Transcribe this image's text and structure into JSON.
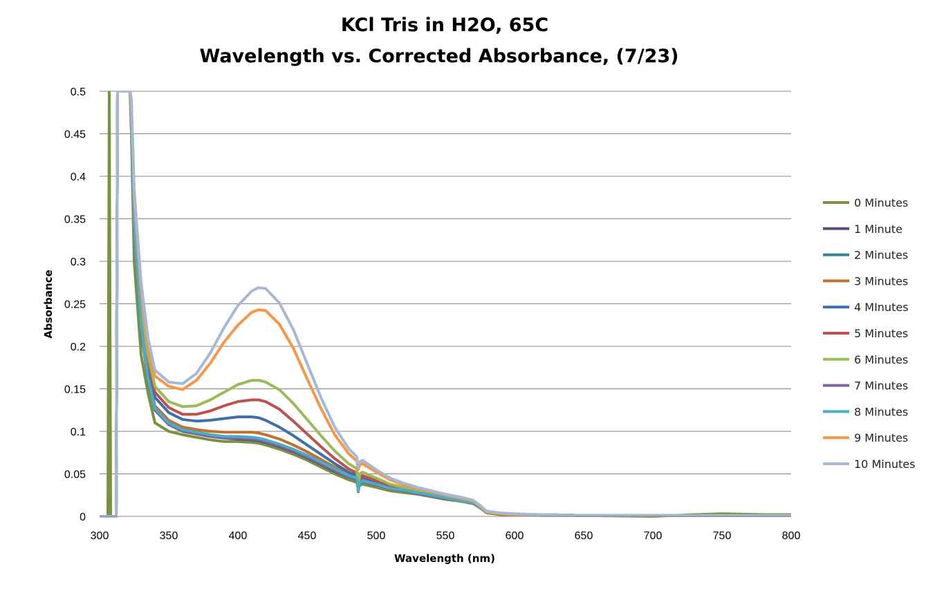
{
  "chart_data": {
    "type": "line",
    "title": [
      "KCl Tris in H2O, 65C",
      "Wavelength vs. Corrected Absorbance, (7/23)"
    ],
    "xlabel": "Wavelength (nm)",
    "ylabel": "Absorbance",
    "xlim": [
      300,
      800
    ],
    "ylim": [
      0,
      0.5
    ],
    "x_ticks": [
      "300",
      "350",
      "400",
      "450",
      "500",
      "550",
      "600",
      "650",
      "700",
      "750",
      "800"
    ],
    "y_ticks": [
      "0",
      "0.05",
      "0.1",
      "0.15",
      "0.2",
      "0.25",
      "0.3",
      "0.35",
      "0.4",
      "0.45",
      "0.5"
    ],
    "grid": "horizontal",
    "legend_position": "right",
    "x": [
      300,
      306,
      307,
      308,
      312,
      313,
      314,
      322,
      323,
      325,
      330,
      335,
      340,
      350,
      360,
      370,
      380,
      390,
      400,
      410,
      415,
      420,
      430,
      440,
      450,
      460,
      470,
      480,
      486,
      487,
      488,
      490,
      500,
      510,
      520,
      530,
      540,
      550,
      560,
      570,
      575,
      580,
      590,
      600,
      620,
      650,
      700,
      730,
      750,
      780,
      800
    ],
    "series": [
      {
        "name": "0 Minutes",
        "color": "#77933c",
        "values": [
          0,
          0,
          0.5,
          0,
          0,
          0.5,
          0.5,
          0.5,
          0.45,
          0.3,
          0.19,
          0.145,
          0.11,
          0.1,
          0.096,
          0.093,
          0.09,
          0.088,
          0.088,
          0.087,
          0.086,
          0.084,
          0.079,
          0.073,
          0.066,
          0.058,
          0.05,
          0.043,
          0.04,
          0.032,
          0.036,
          0.038,
          0.034,
          0.03,
          0.028,
          0.026,
          0.023,
          0.02,
          0.018,
          0.015,
          0.01,
          0.004,
          0.002,
          0.002,
          0.001,
          0.001,
          0,
          0.002,
          0.003,
          0.002,
          0.002
        ]
      },
      {
        "name": "1 Minute",
        "color": "#604a7b",
        "values": [
          0,
          0,
          0,
          0,
          0,
          0.5,
          0.5,
          0.5,
          0.47,
          0.34,
          0.22,
          0.16,
          0.125,
          0.108,
          0.1,
          0.097,
          0.094,
          0.092,
          0.091,
          0.09,
          0.089,
          0.087,
          0.082,
          0.076,
          0.069,
          0.061,
          0.053,
          0.046,
          0.043,
          0.032,
          0.038,
          0.041,
          0.037,
          0.032,
          0.03,
          0.027,
          0.024,
          0.021,
          0.019,
          0.016,
          0.011,
          0.005,
          0.003,
          0.002,
          0.002,
          0.001,
          0.001,
          0.001,
          0.001,
          0.001,
          0.001
        ]
      },
      {
        "name": "2 Minutes",
        "color": "#31849b",
        "values": [
          0,
          0,
          0,
          0,
          0,
          0.5,
          0.5,
          0.5,
          0.47,
          0.345,
          0.225,
          0.163,
          0.127,
          0.11,
          0.102,
          0.099,
          0.096,
          0.094,
          0.093,
          0.092,
          0.091,
          0.089,
          0.084,
          0.078,
          0.071,
          0.063,
          0.055,
          0.047,
          0.044,
          0.03,
          0.039,
          0.042,
          0.038,
          0.033,
          0.031,
          0.028,
          0.025,
          0.022,
          0.019,
          0.016,
          0.011,
          0.005,
          0.003,
          0.002,
          0.002,
          0.001,
          0.001,
          0.001,
          0.001,
          0.001,
          0.001
        ]
      },
      {
        "name": "3 Minutes",
        "color": "#c0712a",
        "values": [
          0,
          0,
          0,
          0,
          0,
          0.5,
          0.5,
          0.5,
          0.47,
          0.35,
          0.23,
          0.168,
          0.13,
          0.113,
          0.105,
          0.102,
          0.1,
          0.099,
          0.099,
          0.099,
          0.098,
          0.096,
          0.091,
          0.084,
          0.076,
          0.067,
          0.058,
          0.05,
          0.046,
          0.03,
          0.041,
          0.044,
          0.039,
          0.034,
          0.031,
          0.028,
          0.025,
          0.022,
          0.019,
          0.016,
          0.011,
          0.005,
          0.003,
          0.002,
          0.002,
          0.001,
          0.001,
          0.001,
          0.001,
          0.001,
          0.001
        ]
      },
      {
        "name": "4 MInutes",
        "color": "#3c6fab",
        "values": [
          0,
          0,
          0,
          0,
          0,
          0.5,
          0.5,
          0.5,
          0.47,
          0.355,
          0.24,
          0.178,
          0.14,
          0.122,
          0.114,
          0.112,
          0.113,
          0.115,
          0.117,
          0.117,
          0.116,
          0.113,
          0.105,
          0.095,
          0.084,
          0.073,
          0.062,
          0.052,
          0.048,
          0.029,
          0.043,
          0.046,
          0.041,
          0.035,
          0.032,
          0.029,
          0.026,
          0.022,
          0.02,
          0.016,
          0.011,
          0.005,
          0.003,
          0.002,
          0.002,
          0.001,
          0.001,
          0.001,
          0.001,
          0.001,
          0.001
        ]
      },
      {
        "name": "5 Minutes",
        "color": "#c0504d",
        "values": [
          0,
          0,
          0,
          0,
          0,
          0.5,
          0.5,
          0.5,
          0.47,
          0.36,
          0.245,
          0.183,
          0.146,
          0.128,
          0.12,
          0.12,
          0.124,
          0.13,
          0.135,
          0.137,
          0.137,
          0.135,
          0.126,
          0.112,
          0.097,
          0.082,
          0.068,
          0.056,
          0.051,
          0.029,
          0.045,
          0.048,
          0.042,
          0.036,
          0.033,
          0.03,
          0.026,
          0.023,
          0.02,
          0.017,
          0.012,
          0.005,
          0.003,
          0.002,
          0.002,
          0.001,
          0.001,
          0.001,
          0.001,
          0.001,
          0.001
        ]
      },
      {
        "name": "6 Minutes",
        "color": "#9bbb59",
        "values": [
          0,
          0,
          0,
          0,
          0,
          0.5,
          0.5,
          0.5,
          0.47,
          0.365,
          0.25,
          0.19,
          0.153,
          0.135,
          0.129,
          0.13,
          0.137,
          0.146,
          0.155,
          0.16,
          0.16,
          0.158,
          0.149,
          0.133,
          0.114,
          0.095,
          0.077,
          0.062,
          0.056,
          0.03,
          0.05,
          0.052,
          0.045,
          0.038,
          0.034,
          0.031,
          0.027,
          0.023,
          0.021,
          0.017,
          0.012,
          0.005,
          0.003,
          0.002,
          0.002,
          0.001,
          0.001,
          0.001,
          0.001,
          0.001,
          0.001
        ]
      },
      {
        "name": "7 Minutes",
        "color": "#8064a2",
        "values": [
          0,
          0,
          0,
          0,
          0,
          0.5,
          0.5,
          0.5,
          0.47,
          0.34,
          0.22,
          0.16,
          0.125,
          0.108,
          0.1,
          0.097,
          0.094,
          0.092,
          0.092,
          0.091,
          0.09,
          0.088,
          0.083,
          0.077,
          0.07,
          0.062,
          0.054,
          0.046,
          0.043,
          0.031,
          0.038,
          0.041,
          0.037,
          0.032,
          0.03,
          0.027,
          0.024,
          0.021,
          0.019,
          0.016,
          0.011,
          0.005,
          0.003,
          0.002,
          0.002,
          0.001,
          0.001,
          0.001,
          0.001,
          0.001,
          0.001
        ]
      },
      {
        "name": "8 Minutes",
        "color": "#4bacc6",
        "values": [
          0,
          0,
          0,
          0,
          0,
          0.5,
          0.5,
          0.5,
          0.47,
          0.345,
          0.225,
          0.163,
          0.127,
          0.11,
          0.102,
          0.099,
          0.096,
          0.094,
          0.094,
          0.093,
          0.092,
          0.09,
          0.085,
          0.079,
          0.072,
          0.064,
          0.056,
          0.048,
          0.045,
          0.031,
          0.039,
          0.042,
          0.038,
          0.033,
          0.031,
          0.028,
          0.025,
          0.022,
          0.019,
          0.016,
          0.011,
          0.005,
          0.003,
          0.002,
          0.002,
          0.001,
          0.001,
          0.001,
          0.001,
          0.001,
          0.001
        ]
      },
      {
        "name": "9 Minutes",
        "color": "#f79646",
        "values": [
          0,
          0,
          0,
          0,
          0,
          0.5,
          0.5,
          0.5,
          0.48,
          0.375,
          0.265,
          0.2,
          0.165,
          0.153,
          0.149,
          0.16,
          0.18,
          0.205,
          0.225,
          0.24,
          0.243,
          0.242,
          0.226,
          0.198,
          0.162,
          0.127,
          0.096,
          0.074,
          0.065,
          0.055,
          0.06,
          0.062,
          0.052,
          0.043,
          0.037,
          0.033,
          0.029,
          0.025,
          0.022,
          0.018,
          0.012,
          0.005,
          0.003,
          0.002,
          0.002,
          0.001,
          0.001,
          0.001,
          0.001,
          0.001,
          0.001
        ]
      },
      {
        "name": "10 Minutes",
        "color": "#a5b8d6",
        "values": [
          0,
          0,
          0,
          0,
          0,
          0.5,
          0.5,
          0.5,
          0.49,
          0.385,
          0.275,
          0.21,
          0.172,
          0.158,
          0.156,
          0.168,
          0.192,
          0.222,
          0.248,
          0.265,
          0.269,
          0.268,
          0.251,
          0.22,
          0.18,
          0.14,
          0.105,
          0.08,
          0.07,
          0.058,
          0.064,
          0.066,
          0.055,
          0.045,
          0.039,
          0.034,
          0.03,
          0.026,
          0.023,
          0.019,
          0.013,
          0.006,
          0.004,
          0.003,
          0.002,
          0.001,
          0.001,
          0.001,
          0.001,
          0.001,
          0.001
        ]
      }
    ]
  }
}
